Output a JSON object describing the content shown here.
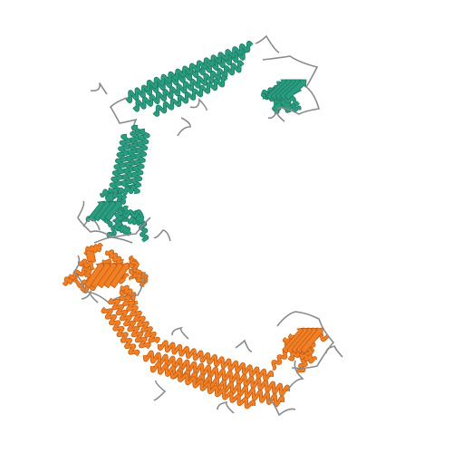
{
  "image": {
    "subject": "protein-structure-ribbon",
    "background_color": "#ffffff",
    "chains": [
      {
        "id": "A",
        "color": "#2a9d80",
        "shade": "#1f7a63",
        "name": "chain-a-teal"
      },
      {
        "id": "B",
        "color": "#f07f26",
        "shade": "#c45f12",
        "name": "chain-b-orange"
      }
    ],
    "loop_color": "#b7b7b7",
    "loop_shade": "#8a8a8a"
  }
}
